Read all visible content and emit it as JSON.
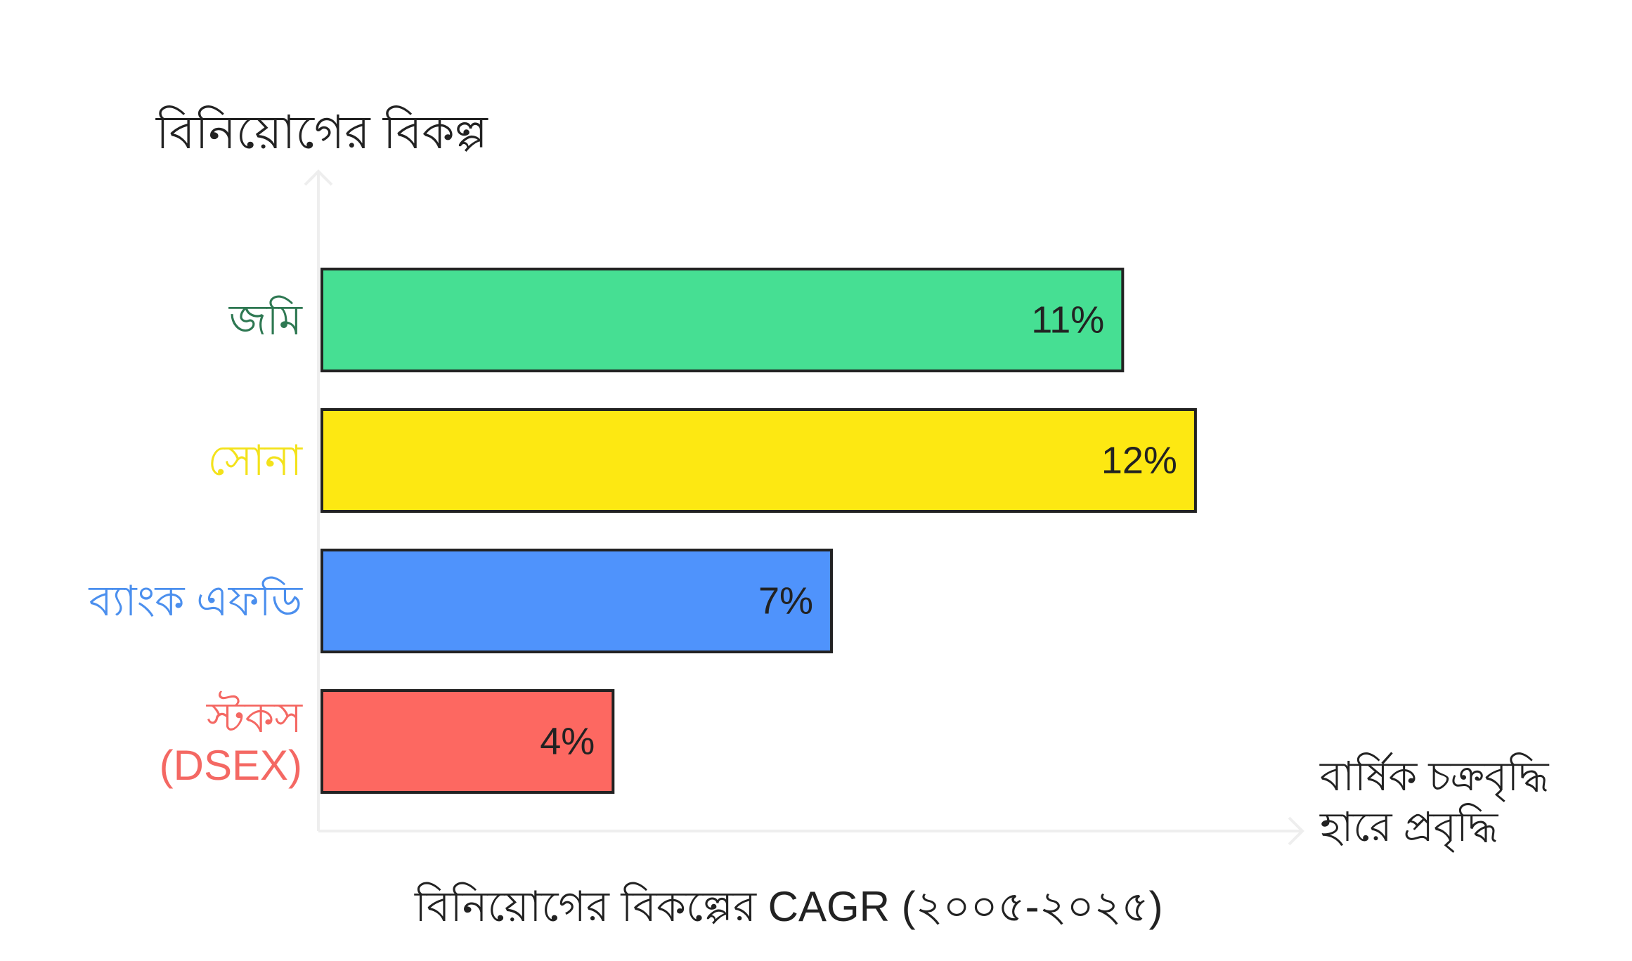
{
  "chart_data": {
    "type": "bar",
    "orientation": "horizontal",
    "title": "বিনিয়োগের বিকল্পের CAGR (২০০৫-২০২৫)",
    "ylabel": "বিনিয়োগের বিকল্প",
    "xlabel": "বার্ষিক চক্রবৃদ্ধি হারে প্রবৃদ্ধি",
    "categories": [
      "জমি",
      "সোনা",
      "ব্যাংক এফডি",
      "স্টকস (DSEX)"
    ],
    "values": [
      11,
      12,
      7,
      4
    ],
    "value_labels": [
      "11%",
      "12%",
      "7%",
      "4%"
    ],
    "unit": "%",
    "xlim": [
      0,
      13.7
    ],
    "grid": false,
    "colors": [
      "#46df93",
      "#fde812",
      "#4f93fc",
      "#fd6861"
    ],
    "label_colors": [
      "#2e7852",
      "#f3e21a",
      "#4b8fee",
      "#f46863"
    ],
    "axis_color": "#eeeeee"
  }
}
